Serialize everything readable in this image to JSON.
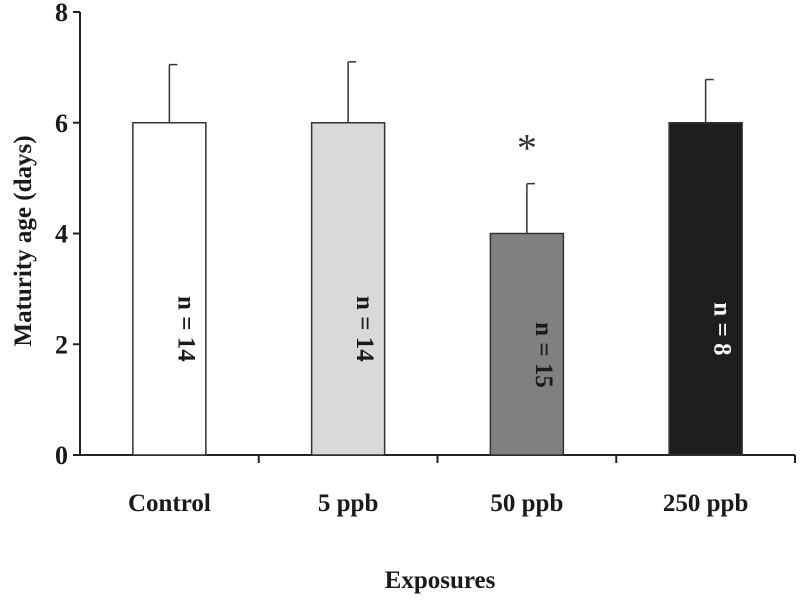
{
  "chart_data": {
    "type": "bar",
    "title": "",
    "xlabel": "Exposures",
    "ylabel": "Maturity age (days)",
    "ylim": [
      0,
      8
    ],
    "yticks": [
      0,
      2,
      4,
      6,
      8
    ],
    "grid": false,
    "categories": [
      "Control",
      "5 ppb",
      "50 ppb",
      "250 ppb"
    ],
    "values": [
      6,
      6,
      4,
      6
    ],
    "errors": [
      1.05,
      1.1,
      0.9,
      0.78
    ],
    "bar_colors": [
      "#ffffff",
      "#d9d9d9",
      "#808080",
      "#1e1e1e"
    ],
    "bar_labels": [
      "n = 14",
      "n = 14",
      "n = 15",
      "n = 8"
    ],
    "bar_label_colors": [
      "#1a1a1a",
      "#1a1a1a",
      "#1a1a1a",
      "#ffffff"
    ],
    "significance": [
      "",
      "",
      "*",
      ""
    ]
  }
}
